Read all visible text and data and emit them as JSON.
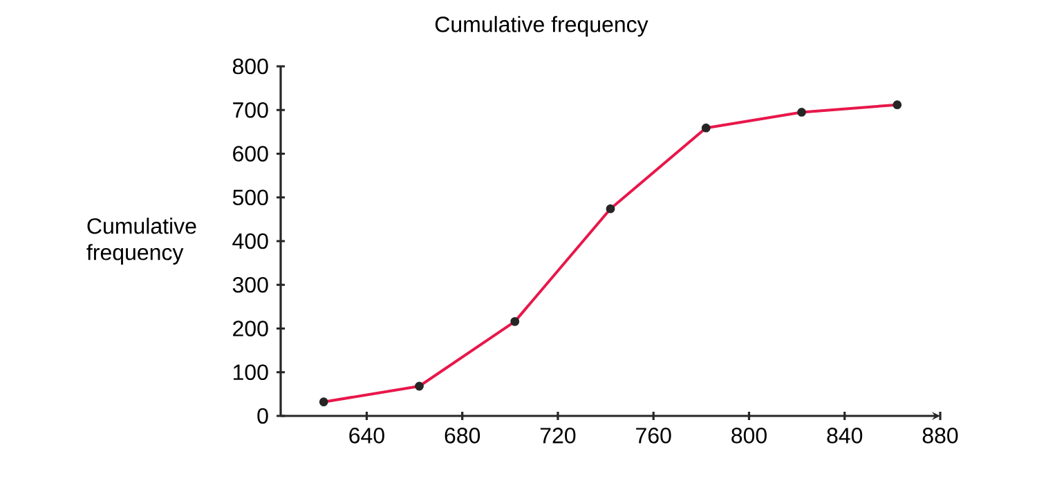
{
  "chart_data": {
    "type": "line",
    "title": "Cumulative frequency",
    "ylabel": "Cumulative frequency",
    "x": [
      622,
      662,
      702,
      742,
      782,
      822,
      862
    ],
    "series": [
      {
        "color": "#e8174a",
        "values": [
          32,
          68,
          216,
          474,
          659,
          695,
          712
        ]
      }
    ],
    "marker": "circle",
    "line_style": "solid",
    "grid": false,
    "xlim": [
      604,
      880
    ],
    "ylim": [
      0,
      800
    ],
    "xticks": [
      640,
      680,
      720,
      760,
      800,
      840,
      880
    ],
    "yticks": [
      0,
      100,
      200,
      300,
      400,
      500,
      600,
      700,
      800
    ]
  }
}
